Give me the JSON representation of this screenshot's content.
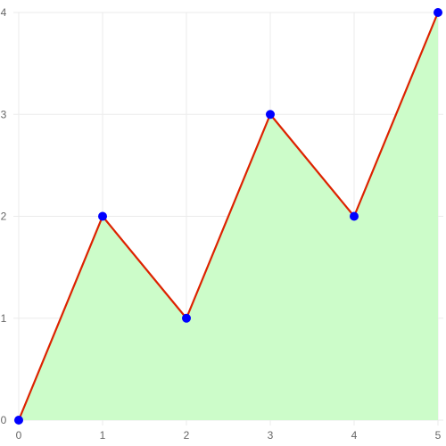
{
  "chart_data": {
    "type": "area",
    "title": "",
    "xlabel": "",
    "ylabel": "",
    "x": [
      0,
      1,
      2,
      3,
      4,
      5
    ],
    "series": [
      {
        "values": [
          0,
          2,
          1,
          3,
          2,
          4
        ]
      }
    ],
    "x_ticks": [
      "0",
      "1",
      "2",
      "3",
      "4",
      "5"
    ],
    "y_ticks": [
      "0",
      "1",
      "2",
      "3",
      "4"
    ],
    "xlim": [
      0,
      5
    ],
    "ylim": [
      0,
      4
    ],
    "grid": true,
    "legend": "none",
    "colors": {
      "line": "#dd2200",
      "fill": "#ccfcc9",
      "point": "#0000ff",
      "grid": "#ebebeb",
      "tick_text": "#666666"
    }
  }
}
